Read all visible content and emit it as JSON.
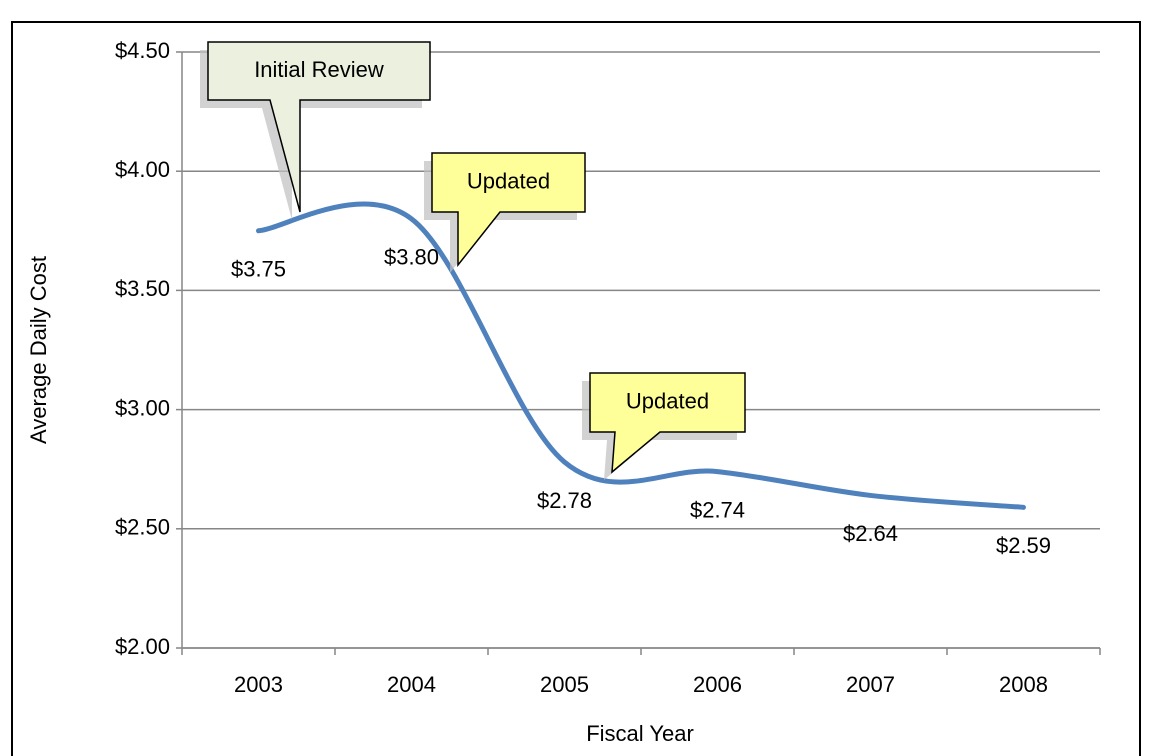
{
  "chart_data": {
    "type": "line",
    "x_label": "Fiscal Year",
    "y_label": "Average Daily Cost",
    "categories": [
      "2003",
      "2004",
      "2005",
      "2006",
      "2007",
      "2008"
    ],
    "values": [
      3.75,
      3.8,
      2.78,
      2.74,
      2.64,
      2.59
    ],
    "value_labels": [
      "$3.75",
      "$3.80",
      "$2.78",
      "$2.74",
      "$2.64",
      "$2.59"
    ],
    "color": "#4f81bd",
    "smooth": true,
    "ylim": [
      2.0,
      4.5
    ],
    "yticks": [
      {
        "value": 2.0,
        "label": "$2.00"
      },
      {
        "value": 2.5,
        "label": "$2.50"
      },
      {
        "value": 3.0,
        "label": "$3.00"
      },
      {
        "value": 3.5,
        "label": "$3.50"
      },
      {
        "value": 4.0,
        "label": "$4.00"
      },
      {
        "value": 4.5,
        "label": "$4.50"
      }
    ],
    "grid": true,
    "annotations": [
      {
        "text": "Initial Review",
        "color": "#ebf1de"
      },
      {
        "text": "Updated",
        "color": "#ffff99"
      },
      {
        "text": "Updated",
        "color": "#ffff99"
      }
    ]
  }
}
